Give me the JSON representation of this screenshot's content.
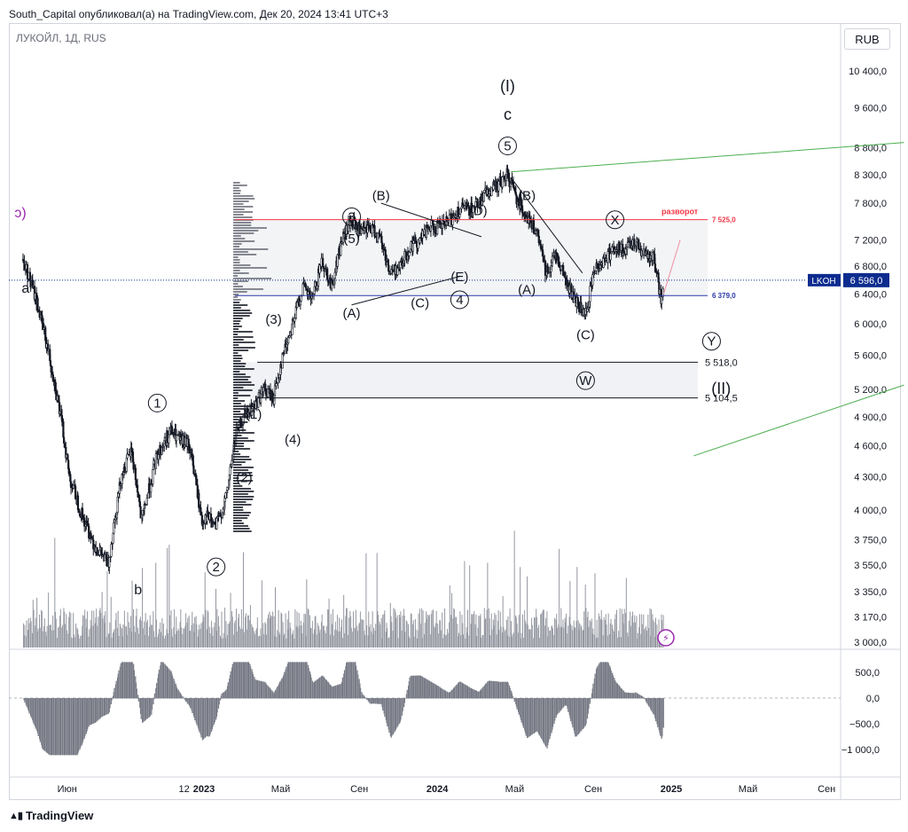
{
  "header": {
    "publish_line": "South_Capital опубликовал(а) на TradingView.com, Дек 20, 2024 13:41 UTC+3",
    "symbol_line": "ЛУКОЙЛ, 1Д, RUS",
    "currency": "RUB"
  },
  "footer": {
    "brand": "TradingView"
  },
  "colors": {
    "candle": "#131722",
    "volume": "#9598a1",
    "osc": "#787b86",
    "grid": "#e0e3eb",
    "red_level": "#f23645",
    "blue_level": "#2a39a8",
    "green_line": "#4caf50",
    "price_tag_bg": "#0d2c8f"
  },
  "chart_data": {
    "type": "line",
    "title": "ЛУКОЙЛ, 1Д, RUS",
    "price_axis": {
      "ticks": [
        "10 400,0",
        "9 600,0",
        "8 800,0",
        "8 300,0",
        "7 800,0",
        "7 200,0",
        "6 800,0",
        "6 400,0",
        "6 000,0",
        "5 600,0",
        "5 200,0",
        "4 900,0",
        "4 600,0",
        "4 300,0",
        "4 000,0",
        "3 750,0",
        "3 550,0",
        "3 350,0",
        "3 170,0",
        "3 000,0"
      ],
      "tick_values": [
        10400,
        9600,
        8800,
        8300,
        7800,
        7200,
        6800,
        6400,
        6000,
        5600,
        5200,
        4900,
        4600,
        4300,
        4000,
        3750,
        3550,
        3350,
        3170,
        3000
      ],
      "scale": "log"
    },
    "time_axis": {
      "labels": [
        "Июн",
        "12",
        "2023",
        "Май",
        "Сен",
        "2024",
        "Май",
        "Сен",
        "2025",
        "Май",
        "Сен"
      ],
      "bold": [
        false,
        false,
        true,
        false,
        false,
        true,
        false,
        false,
        true,
        false,
        false
      ],
      "dates": [
        "2022-06-01",
        "2022-12-01",
        "2023-01-01",
        "2023-05-01",
        "2023-09-01",
        "2024-01-01",
        "2024-05-01",
        "2024-09-01",
        "2025-01-01",
        "2025-05-01",
        "2025-09-01"
      ]
    },
    "series": [
      {
        "name": "LKOH",
        "x": [
          "2022-03-24",
          "2022-04-15",
          "2022-05-15",
          "2022-06-05",
          "2022-06-25",
          "2022-07-15",
          "2022-08-05",
          "2022-08-25",
          "2022-09-10",
          "2022-09-26",
          "2022-10-20",
          "2022-11-10",
          "2022-11-25",
          "2022-12-10",
          "2022-12-29",
          "2023-01-05",
          "2023-01-20",
          "2023-02-05",
          "2023-02-20",
          "2023-03-05",
          "2023-03-20",
          "2023-04-05",
          "2023-04-20",
          "2023-05-05",
          "2023-05-20",
          "2023-06-05",
          "2023-06-20",
          "2023-07-05",
          "2023-07-20",
          "2023-08-05",
          "2023-08-20",
          "2023-09-05",
          "2023-09-20",
          "2023-10-05",
          "2023-10-20",
          "2023-11-05",
          "2023-11-20",
          "2023-12-05",
          "2023-12-20",
          "2024-01-05",
          "2024-01-20",
          "2024-02-05",
          "2024-02-20",
          "2024-03-05",
          "2024-03-20",
          "2024-04-05",
          "2024-04-20",
          "2024-05-05",
          "2024-05-20",
          "2024-06-05",
          "2024-06-20",
          "2024-07-05",
          "2024-07-20",
          "2024-08-05",
          "2024-08-20",
          "2024-09-05",
          "2024-09-20",
          "2024-10-05",
          "2024-10-20",
          "2024-11-05",
          "2024-11-20",
          "2024-12-05",
          "2024-12-17",
          "2024-12-20"
        ],
        "values": [
          6900,
          6300,
          5200,
          4300,
          3950,
          3700,
          3550,
          4300,
          4550,
          3900,
          4500,
          4750,
          4650,
          4600,
          3900,
          3950,
          3850,
          4100,
          4700,
          4900,
          5000,
          5200,
          5100,
          5600,
          6000,
          6500,
          6300,
          6900,
          6500,
          7200,
          7500,
          7300,
          7400,
          7200,
          6700,
          6800,
          7100,
          7200,
          7400,
          7400,
          7500,
          7700,
          7700,
          7800,
          8000,
          8100,
          8300,
          7900,
          7600,
          7300,
          6700,
          7000,
          6600,
          6300,
          6100,
          6800,
          6900,
          7100,
          7000,
          7200,
          7000,
          6900,
          6300,
          6596
        ]
      }
    ],
    "oscillator_axis": {
      "ticks": [
        "500,0",
        "0,0",
        "−500,0",
        "−1 000,0"
      ],
      "tick_values": [
        500,
        0,
        -500,
        -1000
      ]
    },
    "levels": [
      {
        "label": "разворот",
        "value_label": "7 525,0",
        "value": 7525,
        "color": "#f23645"
      },
      {
        "label": "",
        "value_label": "6 379,0",
        "value": 6379,
        "color": "#2a39a8"
      },
      {
        "label": "",
        "value_label": "5 518,0",
        "value": 5518,
        "color": "#131722"
      },
      {
        "label": "",
        "value_label": "5 104,5",
        "value": 5104.5,
        "color": "#131722"
      }
    ],
    "last_price": {
      "ticker": "LKOH",
      "value": "6 596,0",
      "price": 6596
    },
    "wave_labels": [
      {
        "text": "(I)",
        "x": "2024-04-20",
        "y": 9950,
        "size": 18
      },
      {
        "text": "c",
        "x": "2024-04-20",
        "y": 9350,
        "size": 18
      },
      {
        "text": "5",
        "x": "2024-04-20",
        "y": 8750,
        "circled": true
      },
      {
        "text": "(B)",
        "x": "2023-10-05",
        "y": 7850
      },
      {
        "text": "(D)",
        "x": "2024-03-05",
        "y": 7600
      },
      {
        "text": "(B)",
        "x": "2024-05-20",
        "y": 7850
      },
      {
        "text": "3",
        "x": "2023-08-20",
        "y": 7500,
        "circled": true
      },
      {
        "text": "(5)",
        "x": "2023-08-20",
        "y": 7150
      },
      {
        "text": "X",
        "x": "2024-10-05",
        "y": 7450,
        "circled": true
      },
      {
        "text": "(E)",
        "x": "2024-02-05",
        "y": 6580
      },
      {
        "text": "(A)",
        "x": "2024-05-20",
        "y": 6400
      },
      {
        "text": "4",
        "x": "2024-02-05",
        "y": 6260,
        "circled": true
      },
      {
        "text": "(A)",
        "x": "2023-08-20",
        "y": 6080
      },
      {
        "text": "(C)",
        "x": "2023-12-05",
        "y": 6220
      },
      {
        "text": "(C)",
        "x": "2024-08-20",
        "y": 5800
      },
      {
        "text": "Y",
        "x": "2025-03-05",
        "y": 5720,
        "circled": true
      },
      {
        "text": "W",
        "x": "2024-08-20",
        "y": 5250,
        "circled": true
      },
      {
        "text": "(II)",
        "x": "2025-03-20",
        "y": 5150,
        "size": 18
      },
      {
        "text": "(3)",
        "x": "2023-04-20",
        "y": 6000
      },
      {
        "text": "1",
        "x": "2022-10-20",
        "y": 5000,
        "circled": true
      },
      {
        "text": "(1)",
        "x": "2023-03-20",
        "y": 4880
      },
      {
        "text": "(4)",
        "x": "2023-05-20",
        "y": 4620
      },
      {
        "text": "(2)",
        "x": "2023-03-05",
        "y": 4250
      },
      {
        "text": "2",
        "x": "2023-01-20",
        "y": 3500,
        "circled": true
      },
      {
        "text": "a",
        "x": "2022-03-28",
        "y": 6420,
        "size": 16
      },
      {
        "text": "b",
        "x": "2022-09-20",
        "y": 3330,
        "size": 16
      },
      {
        "text": "ɔ)",
        "x": "2022-03-20",
        "y": 7560,
        "size": 16,
        "color": "#9c27b0"
      }
    ],
    "grid": false
  }
}
